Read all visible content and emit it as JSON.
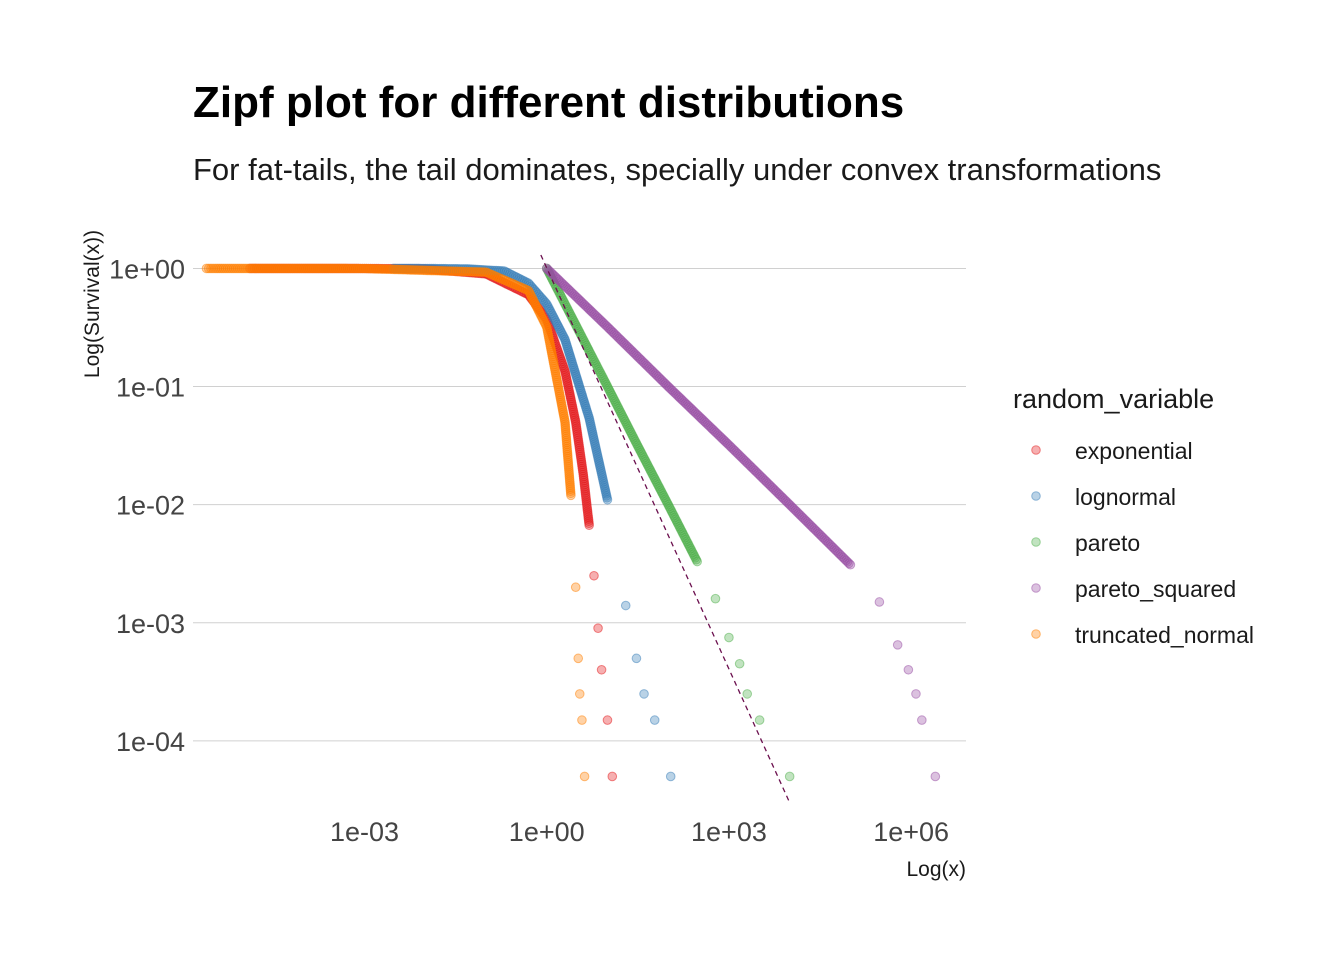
{
  "chart_data": {
    "type": "scatter",
    "title": "Zipf plot for different distributions",
    "subtitle": "For fat-tails, the tail dominates, specially under convex transformations",
    "xlabel": "Log(x)",
    "ylabel": "Log(Survival(x))",
    "x_scale": "log10",
    "y_scale": "log10",
    "xlim": [
      1.5e-06,
      8000000
    ],
    "ylim": [
      2.5e-05,
      2.2
    ],
    "x_ticks": [
      {
        "value": 0.001,
        "label": "1e-03"
      },
      {
        "value": 1,
        "label": "1e+00"
      },
      {
        "value": 1000,
        "label": "1e+03"
      },
      {
        "value": 1000000,
        "label": "1e+06"
      }
    ],
    "y_ticks": [
      {
        "value": 1,
        "label": "1e+00"
      },
      {
        "value": 0.1,
        "label": "1e-01"
      },
      {
        "value": 0.01,
        "label": "1e-02"
      },
      {
        "value": 0.001,
        "label": "1e-03"
      },
      {
        "value": 0.0001,
        "label": "1e-04"
      }
    ],
    "grid": "horizontal major",
    "legend": {
      "title": "random_variable",
      "position": "right",
      "entries": [
        "exponential",
        "lognormal",
        "pareto",
        "pareto_squared",
        "truncated_normal"
      ]
    },
    "series": [
      {
        "name": "exponential",
        "color": "#E41A1C",
        "sample_points": [
          [
            1.3e-05,
            1.0
          ],
          [
            2.3e-05,
            1.0
          ],
          [
            6e-05,
            1.0
          ],
          [
            0.0001,
            1.0
          ],
          [
            0.0003,
            1.0
          ],
          [
            0.001,
            0.999
          ],
          [
            0.01,
            0.99
          ],
          [
            0.1,
            0.9
          ],
          [
            0.5,
            0.6
          ],
          [
            1,
            0.37
          ],
          [
            2,
            0.135
          ],
          [
            3,
            0.05
          ],
          [
            4,
            0.018
          ],
          [
            5,
            0.0067
          ],
          [
            6,
            0.0025
          ],
          [
            7,
            0.0009
          ],
          [
            8,
            0.0004
          ],
          [
            10,
            0.00015
          ],
          [
            12,
            5e-05
          ]
        ]
      },
      {
        "name": "lognormal",
        "color": "#377EB8",
        "sample_points": [
          [
            0.003,
            1.0
          ],
          [
            0.01,
            0.999
          ],
          [
            0.05,
            0.99
          ],
          [
            0.2,
            0.95
          ],
          [
            0.5,
            0.75
          ],
          [
            1,
            0.5
          ],
          [
            2,
            0.25
          ],
          [
            5,
            0.054
          ],
          [
            10,
            0.011
          ],
          [
            20,
            0.0014
          ],
          [
            30,
            0.0005
          ],
          [
            40,
            0.00025
          ],
          [
            60,
            0.00015
          ],
          [
            110,
            5e-05
          ]
        ]
      },
      {
        "name": "pareto",
        "color": "#4DAF4A",
        "sample_points": [
          [
            1,
            1.0
          ],
          [
            2,
            0.5
          ],
          [
            5,
            0.2
          ],
          [
            10,
            0.1
          ],
          [
            30,
            0.033
          ],
          [
            100,
            0.01
          ],
          [
            300,
            0.0033
          ],
          [
            600,
            0.0016
          ],
          [
            1000,
            0.00075
          ],
          [
            1500,
            0.00045
          ],
          [
            2000,
            0.00025
          ],
          [
            3200,
            0.00015
          ],
          [
            10000,
            5e-05
          ]
        ]
      },
      {
        "name": "pareto_squared",
        "color": "#984EA3",
        "sample_points": [
          [
            1,
            1.0
          ],
          [
            10,
            0.32
          ],
          [
            100,
            0.1
          ],
          [
            1000,
            0.032
          ],
          [
            10000,
            0.01
          ],
          [
            100000,
            0.0031
          ],
          [
            300000,
            0.0015
          ],
          [
            600000,
            0.00065
          ],
          [
            900000,
            0.0004
          ],
          [
            1200000,
            0.00025
          ],
          [
            1500000,
            0.00015
          ],
          [
            2500000,
            5e-05
          ]
        ]
      },
      {
        "name": "truncated_normal",
        "color": "#FF7F00",
        "sample_points": [
          [
            2.5e-06,
            1.0
          ],
          [
            3.5e-06,
            1.0
          ],
          [
            6.5e-06,
            1.0
          ],
          [
            1.3e-05,
            1.0
          ],
          [
            0.001,
            0.999
          ],
          [
            0.1,
            0.93
          ],
          [
            0.5,
            0.65
          ],
          [
            1,
            0.32
          ],
          [
            2,
            0.05
          ],
          [
            2.5,
            0.012
          ],
          [
            3,
            0.002
          ],
          [
            3.3,
            0.0005
          ],
          [
            3.5,
            0.00025
          ],
          [
            3.8,
            0.00015
          ],
          [
            4.2,
            5e-05
          ]
        ]
      }
    ],
    "reference_line": {
      "style": "dashed",
      "color": "#6B0F4E",
      "points": [
        [
          0.8,
          1.3
        ],
        [
          10000,
          3e-05
        ]
      ]
    }
  }
}
